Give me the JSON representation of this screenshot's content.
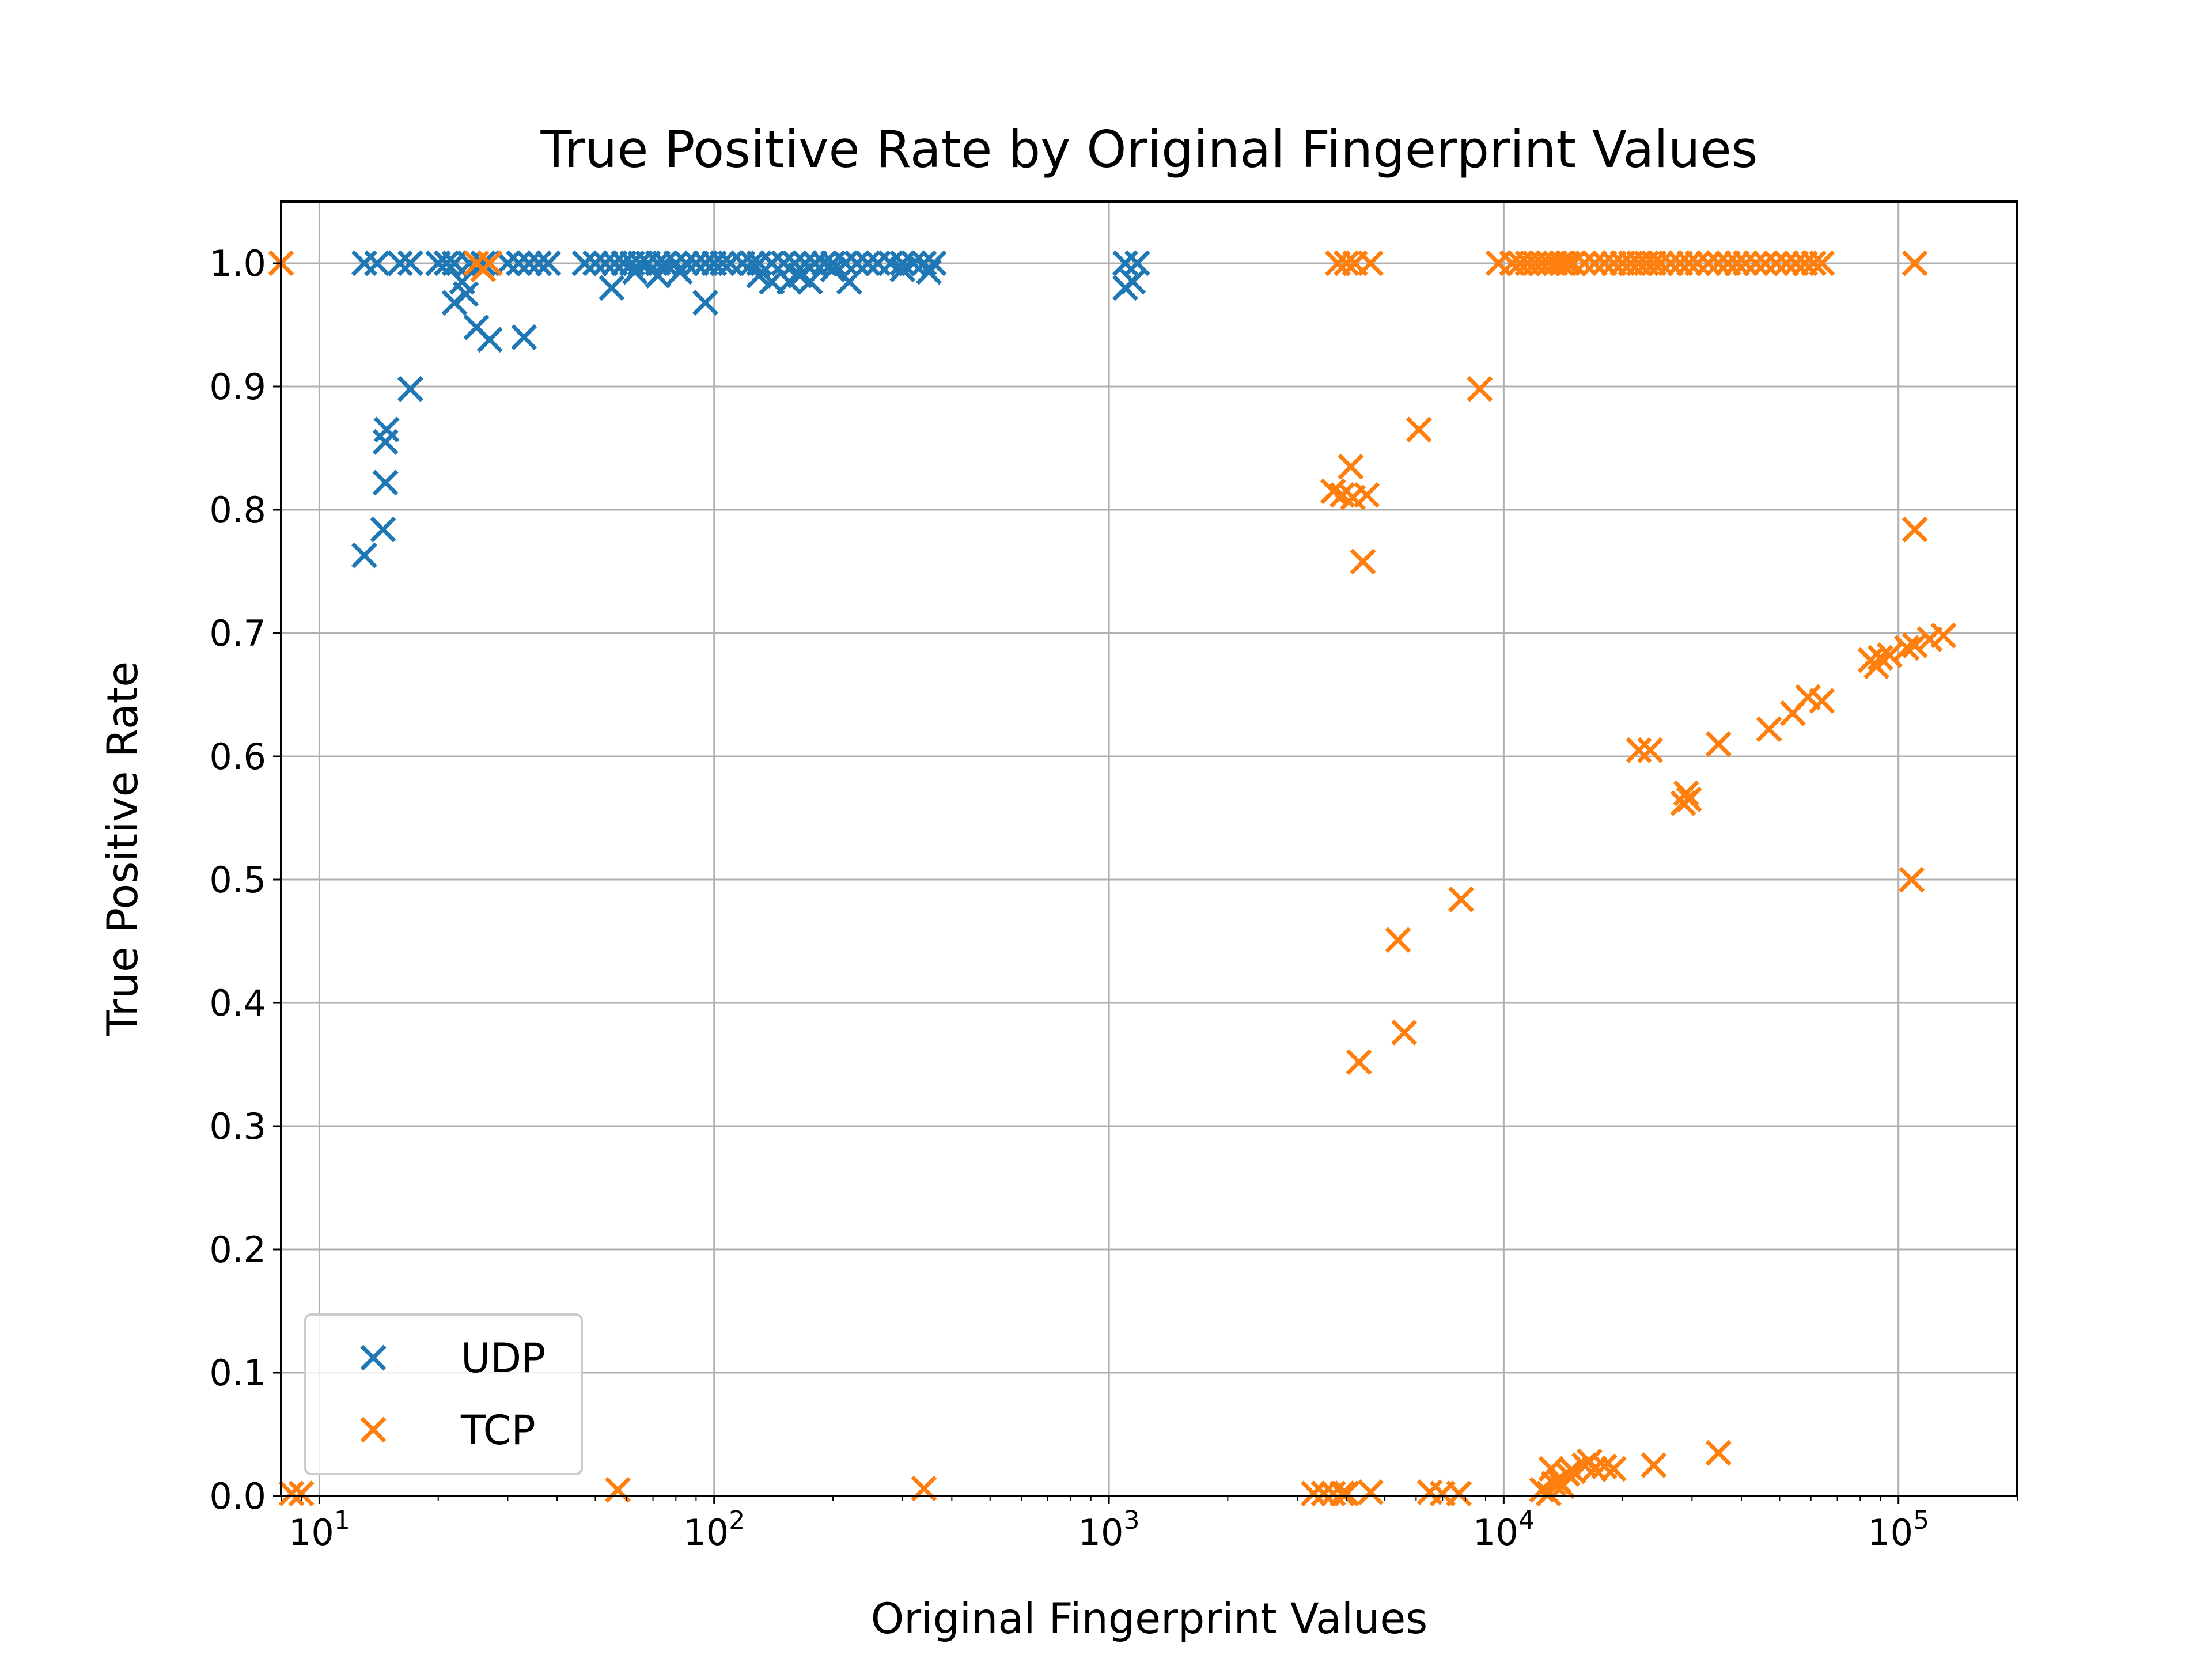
{
  "chart_data": {
    "type": "scatter",
    "title": "True Positive Rate by Original Fingerprint Values",
    "xlabel": "Original Fingerprint Values",
    "ylabel": "True Positive Rate",
    "xscale": "log",
    "xlim": [
      8,
      200000
    ],
    "ylim": [
      0,
      1.05
    ],
    "grid": true,
    "legend_position": "lower-left",
    "x_ticks": [
      {
        "value": 10,
        "base": "10",
        "exp": "1"
      },
      {
        "value": 100,
        "base": "10",
        "exp": "2"
      },
      {
        "value": 1000,
        "base": "10",
        "exp": "3"
      },
      {
        "value": 10000,
        "base": "10",
        "exp": "4"
      },
      {
        "value": 100000,
        "base": "10",
        "exp": "5"
      }
    ],
    "y_ticks": [
      "0.0",
      "0.1",
      "0.2",
      "0.3",
      "0.4",
      "0.5",
      "0.6",
      "0.7",
      "0.8",
      "0.9",
      "1.0"
    ],
    "series": [
      {
        "name": "UDP",
        "color": "#1f77b4",
        "marker": "x",
        "points": [
          [
            13,
            1.0
          ],
          [
            14,
            1.0
          ],
          [
            16,
            1.0
          ],
          [
            17,
            1.0
          ],
          [
            20,
            1.0
          ],
          [
            21,
            1.0
          ],
          [
            22,
            1.0
          ],
          [
            24,
            1.0
          ],
          [
            26,
            1.0
          ],
          [
            30,
            1.0
          ],
          [
            32,
            1.0
          ],
          [
            34,
            1.0
          ],
          [
            36,
            1.0
          ],
          [
            38,
            1.0
          ],
          [
            13,
            0.763
          ],
          [
            14.5,
            0.784
          ],
          [
            14.7,
            0.822
          ],
          [
            14.7,
            0.855
          ],
          [
            14.8,
            0.865
          ],
          [
            17,
            0.898
          ],
          [
            22,
            0.968
          ],
          [
            23,
            0.985
          ],
          [
            23.5,
            0.975
          ],
          [
            25,
            0.948
          ],
          [
            27,
            0.938
          ],
          [
            33,
            0.94
          ],
          [
            47,
            1.0
          ],
          [
            50,
            1.0
          ],
          [
            53,
            1.0
          ],
          [
            56,
            1.0
          ],
          [
            59,
            1.0
          ],
          [
            62,
            1.0
          ],
          [
            65,
            1.0
          ],
          [
            68,
            1.0
          ],
          [
            72,
            1.0
          ],
          [
            75,
            1.0
          ],
          [
            80,
            1.0
          ],
          [
            85,
            1.0
          ],
          [
            90,
            1.0
          ],
          [
            95,
            1.0
          ],
          [
            100,
            1.0
          ],
          [
            105,
            1.0
          ],
          [
            110,
            1.0
          ],
          [
            118,
            1.0
          ],
          [
            125,
            1.0
          ],
          [
            130,
            1.0
          ],
          [
            140,
            1.0
          ],
          [
            150,
            1.0
          ],
          [
            160,
            1.0
          ],
          [
            170,
            1.0
          ],
          [
            180,
            1.0
          ],
          [
            190,
            1.0
          ],
          [
            200,
            1.0
          ],
          [
            215,
            1.0
          ],
          [
            230,
            1.0
          ],
          [
            245,
            1.0
          ],
          [
            260,
            1.0
          ],
          [
            280,
            1.0
          ],
          [
            300,
            1.0
          ],
          [
            320,
            1.0
          ],
          [
            340,
            1.0
          ],
          [
            360,
            1.0
          ],
          [
            55,
            0.98
          ],
          [
            63,
            0.993
          ],
          [
            72,
            0.99
          ],
          [
            82,
            0.993
          ],
          [
            95,
            0.968
          ],
          [
            130,
            0.99
          ],
          [
            140,
            0.985
          ],
          [
            155,
            0.985
          ],
          [
            165,
            0.99
          ],
          [
            175,
            0.985
          ],
          [
            200,
            0.995
          ],
          [
            220,
            0.985
          ],
          [
            300,
            0.995
          ],
          [
            350,
            0.993
          ],
          [
            1100,
            1.0
          ],
          [
            1100,
            0.98
          ],
          [
            1150,
            0.985
          ],
          [
            1180,
            1.0
          ]
        ]
      },
      {
        "name": "TCP",
        "color": "#ff7f0e",
        "marker": "x",
        "points": [
          [
            8,
            1.0
          ],
          [
            8.5,
            0.002
          ],
          [
            9,
            0.002
          ],
          [
            25,
            1.0
          ],
          [
            26,
            0.995
          ],
          [
            27,
            1.0
          ],
          [
            57,
            0.005
          ],
          [
            340,
            0.006
          ],
          [
            3800,
            1.0
          ],
          [
            4000,
            1.0
          ],
          [
            4200,
            1.0
          ],
          [
            4600,
            1.0
          ],
          [
            3700,
            0.815
          ],
          [
            3900,
            0.812
          ],
          [
            4100,
            0.835
          ],
          [
            4150,
            0.81
          ],
          [
            4500,
            0.812
          ],
          [
            4400,
            0.758
          ],
          [
            4300,
            0.352
          ],
          [
            5400,
            0.451
          ],
          [
            5600,
            0.376
          ],
          [
            6100,
            0.865
          ],
          [
            7800,
            0.484
          ],
          [
            8700,
            0.898
          ],
          [
            3300,
            0.002
          ],
          [
            3500,
            0.002
          ],
          [
            3700,
            0.002
          ],
          [
            3900,
            0.002
          ],
          [
            4000,
            0.002
          ],
          [
            4600,
            0.003
          ],
          [
            6500,
            0.003
          ],
          [
            7000,
            0.002
          ],
          [
            7700,
            0.002
          ],
          [
            12500,
            0.005
          ],
          [
            13000,
            0.002
          ],
          [
            13200,
            0.022
          ],
          [
            13400,
            0.01
          ],
          [
            13800,
            0.012
          ],
          [
            14100,
            0.008
          ],
          [
            14500,
            0.018
          ],
          [
            15000,
            0.02
          ],
          [
            16000,
            0.025
          ],
          [
            16500,
            0.028
          ],
          [
            17000,
            0.022
          ],
          [
            18000,
            0.024
          ],
          [
            19000,
            0.022
          ],
          [
            24000,
            0.025
          ],
          [
            35000,
            0.035
          ],
          [
            22000,
            0.605
          ],
          [
            23500,
            0.605
          ],
          [
            28500,
            0.562
          ],
          [
            29000,
            0.57
          ],
          [
            29500,
            0.565
          ],
          [
            35000,
            0.61
          ],
          [
            47000,
            0.622
          ],
          [
            54000,
            0.635
          ],
          [
            59000,
            0.648
          ],
          [
            64000,
            0.645
          ],
          [
            85000,
            0.678
          ],
          [
            88000,
            0.673
          ],
          [
            90000,
            0.68
          ],
          [
            95000,
            0.682
          ],
          [
            105000,
            0.688
          ],
          [
            110000,
            0.69
          ],
          [
            120000,
            0.695
          ],
          [
            130000,
            0.698
          ],
          [
            110000,
            0.784
          ],
          [
            108000,
            0.5
          ],
          [
            110000,
            1.0
          ],
          [
            9700,
            1.0
          ],
          [
            10500,
            1.0
          ],
          [
            11000,
            1.0
          ],
          [
            11500,
            1.0
          ],
          [
            12000,
            1.0
          ],
          [
            12500,
            1.0
          ],
          [
            13000,
            1.0
          ],
          [
            13500,
            1.0
          ],
          [
            14000,
            1.0
          ],
          [
            14500,
            1.0
          ],
          [
            15000,
            1.0
          ],
          [
            16000,
            1.0
          ],
          [
            17000,
            1.0
          ],
          [
            18000,
            1.0
          ],
          [
            19000,
            1.0
          ],
          [
            20000,
            1.0
          ],
          [
            21000,
            1.0
          ],
          [
            22000,
            1.0
          ],
          [
            23000,
            1.0
          ],
          [
            24000,
            1.0
          ],
          [
            25000,
            1.0
          ],
          [
            26500,
            1.0
          ],
          [
            28000,
            1.0
          ],
          [
            29500,
            1.0
          ],
          [
            31000,
            1.0
          ],
          [
            33000,
            1.0
          ],
          [
            35000,
            1.0
          ],
          [
            37000,
            1.0
          ],
          [
            39000,
            1.0
          ],
          [
            41000,
            1.0
          ],
          [
            43500,
            1.0
          ],
          [
            46000,
            1.0
          ],
          [
            49000,
            1.0
          ],
          [
            52000,
            1.0
          ],
          [
            55000,
            1.0
          ],
          [
            58000,
            1.0
          ],
          [
            61000,
            1.0
          ],
          [
            64000,
            1.0
          ]
        ]
      }
    ]
  }
}
